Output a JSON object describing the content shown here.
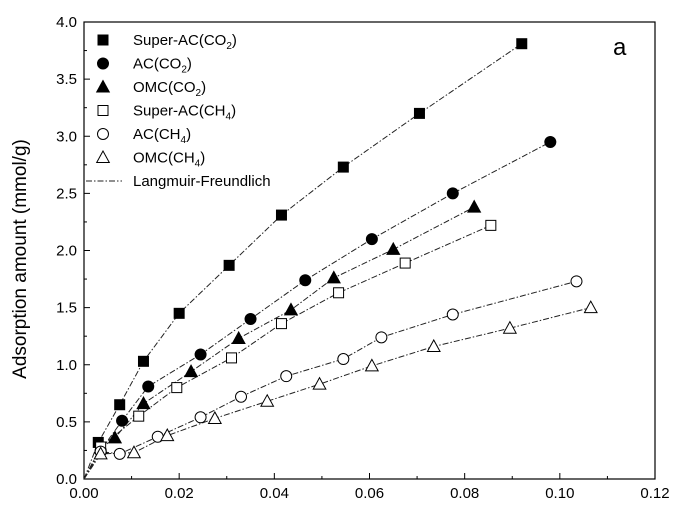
{
  "chart_data": {
    "type": "scatter",
    "panel_label": "a",
    "xlabel": "",
    "ylabel": "Adsorption amount (mmol/g)",
    "xlim": [
      0.0,
      0.12
    ],
    "ylim": [
      0.0,
      4.0
    ],
    "xticks": [
      "0.00",
      "0.02",
      "0.04",
      "0.06",
      "0.08",
      "0.10",
      "0.12"
    ],
    "yticks": [
      "0.0",
      "0.5",
      "1.0",
      "1.5",
      "2.0",
      "2.5",
      "3.0",
      "3.5",
      "4.0"
    ],
    "grid": false,
    "legend_position": "top-left",
    "fit_label": "Langmuir-Freundlich",
    "series": [
      {
        "name": "Super-AC(CO2)",
        "label": {
          "pre": "Super-AC(CO",
          "sub": "2",
          "post": ")"
        },
        "marker": "square-filled",
        "points": [
          [
            0.003,
            0.32
          ],
          [
            0.0075,
            0.65
          ],
          [
            0.0125,
            1.03
          ],
          [
            0.02,
            1.45
          ],
          [
            0.0305,
            1.87
          ],
          [
            0.0415,
            2.31
          ],
          [
            0.0545,
            2.73
          ],
          [
            0.0705,
            3.2
          ],
          [
            0.092,
            3.81
          ]
        ]
      },
      {
        "name": "AC(CO2)",
        "label": {
          "pre": "AC(CO",
          "sub": "2",
          "post": ")"
        },
        "marker": "circle-filled",
        "points": [
          [
            0.0035,
            0.25
          ],
          [
            0.008,
            0.51
          ],
          [
            0.0135,
            0.81
          ],
          [
            0.0245,
            1.09
          ],
          [
            0.035,
            1.4
          ],
          [
            0.0465,
            1.74
          ],
          [
            0.0605,
            2.1
          ],
          [
            0.0775,
            2.5
          ],
          [
            0.098,
            2.95
          ]
        ]
      },
      {
        "name": "OMC(CO2)",
        "label": {
          "pre": "OMC(CO",
          "sub": "2",
          "post": ")"
        },
        "marker": "triangle-filled",
        "points": [
          [
            0.0035,
            0.27
          ],
          [
            0.0065,
            0.36
          ],
          [
            0.0125,
            0.66
          ],
          [
            0.0225,
            0.94
          ],
          [
            0.0325,
            1.23
          ],
          [
            0.0435,
            1.48
          ],
          [
            0.0525,
            1.76
          ],
          [
            0.065,
            2.01
          ],
          [
            0.082,
            2.38
          ]
        ]
      },
      {
        "name": "Super-AC(CH4)",
        "label": {
          "pre": "Super-AC(CH",
          "sub": "4",
          "post": ")"
        },
        "marker": "square-open",
        "points": [
          [
            0.0035,
            0.28
          ],
          [
            0.0115,
            0.55
          ],
          [
            0.0195,
            0.8
          ],
          [
            0.031,
            1.06
          ],
          [
            0.0415,
            1.36
          ],
          [
            0.0535,
            1.63
          ],
          [
            0.0675,
            1.89
          ],
          [
            0.0855,
            2.22
          ]
        ]
      },
      {
        "name": "AC(CH4)",
        "label": {
          "pre": "AC(CH",
          "sub": "4",
          "post": ")"
        },
        "marker": "circle-open",
        "points": [
          [
            0.0035,
            0.24
          ],
          [
            0.0075,
            0.22
          ],
          [
            0.0155,
            0.37
          ],
          [
            0.0245,
            0.54
          ],
          [
            0.033,
            0.72
          ],
          [
            0.0425,
            0.9
          ],
          [
            0.0545,
            1.05
          ],
          [
            0.0625,
            1.24
          ],
          [
            0.0775,
            1.44
          ],
          [
            0.1035,
            1.73
          ]
        ]
      },
      {
        "name": "OMC(CH4)",
        "label": {
          "pre": "OMC(CH",
          "sub": "4",
          "post": ")"
        },
        "marker": "triangle-open",
        "points": [
          [
            0.0035,
            0.22
          ],
          [
            0.0105,
            0.23
          ],
          [
            0.0175,
            0.38
          ],
          [
            0.0275,
            0.53
          ],
          [
            0.0385,
            0.68
          ],
          [
            0.0495,
            0.83
          ],
          [
            0.0605,
            0.99
          ],
          [
            0.0735,
            1.16
          ],
          [
            0.0895,
            1.32
          ],
          [
            0.1065,
            1.5
          ]
        ]
      }
    ]
  }
}
